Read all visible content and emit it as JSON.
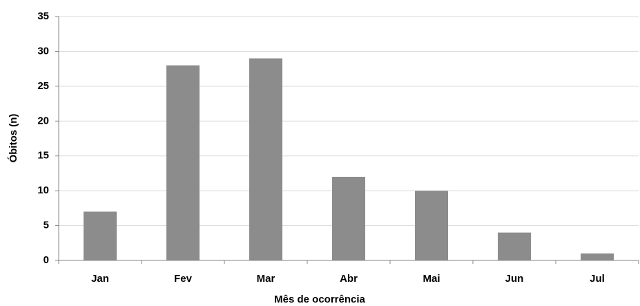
{
  "chart_data": {
    "type": "bar",
    "x_label": "Mês de ocorrência",
    "y_label": "Óbitos (n)",
    "categories": [
      "Jan",
      "Fev",
      "Mar",
      "Abr",
      "Mai",
      "Jun",
      "Jul"
    ],
    "values": [
      7,
      28,
      29,
      12,
      10,
      4,
      1
    ],
    "color": "#8c8c8c",
    "ylim": [
      0,
      35
    ],
    "yticks": [
      0,
      5,
      10,
      15,
      20,
      25,
      30,
      35
    ],
    "grid": true
  }
}
